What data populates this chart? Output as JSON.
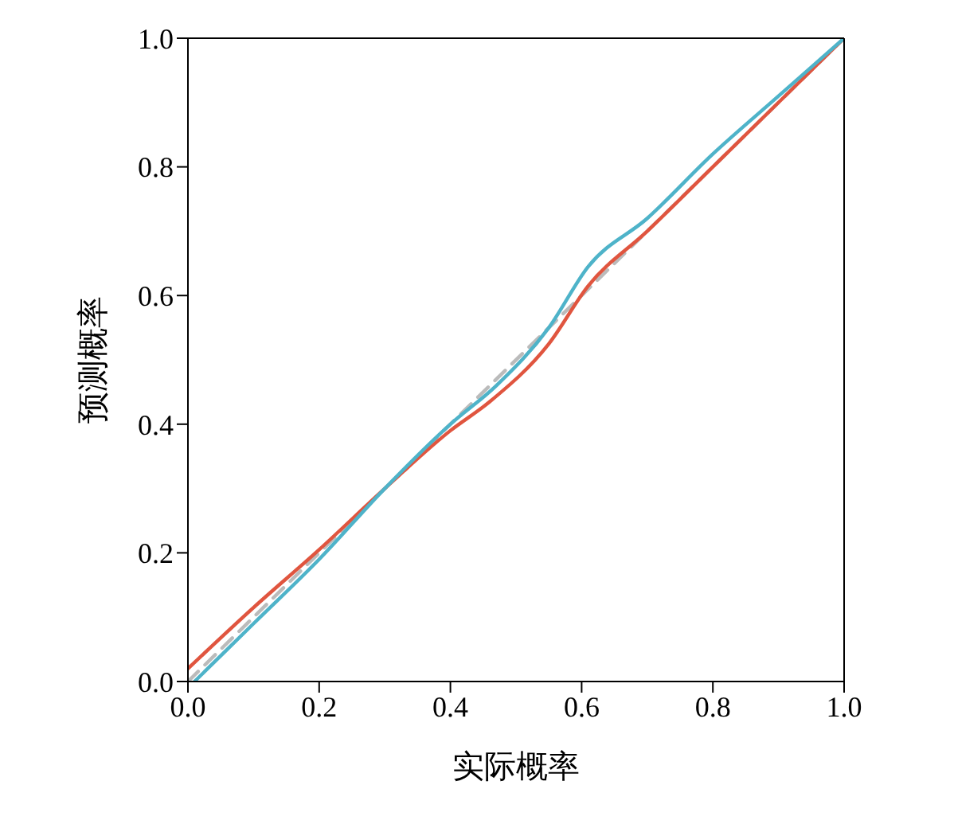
{
  "chart_data": {
    "type": "line",
    "xlabel": "实际概率",
    "ylabel": "预测概率",
    "xlim": [
      0,
      1
    ],
    "ylim": [
      0,
      1
    ],
    "xticks": [
      {
        "value": 0,
        "label": "0.0"
      },
      0.2,
      0.4,
      0.6,
      0.8,
      {
        "value": 1,
        "label": "1.0"
      }
    ],
    "yticks": [
      {
        "value": 0,
        "label": "0.0"
      },
      0.2,
      0.4,
      0.6,
      0.8,
      {
        "value": 1,
        "label": "1.0"
      }
    ],
    "legend": false,
    "marker": "none",
    "series": [
      {
        "color": "#bbbbbb",
        "line_style": "dashed",
        "x": [
          0,
          1
        ],
        "values": [
          0,
          1
        ]
      },
      {
        "color": "#e0553f",
        "line_style": "solid",
        "x": [
          0,
          0.1,
          0.2,
          0.3,
          0.4,
          0.46,
          0.55,
          0.61,
          0.7,
          0.8,
          0.9,
          1
        ],
        "values": [
          0.02,
          0.115,
          0.205,
          0.3,
          0.39,
          0.435,
          0.525,
          0.615,
          0.7,
          0.8,
          0.9,
          1
        ]
      },
      {
        "color": "#4eb3c9",
        "line_style": "solid",
        "x": [
          0.01,
          0.1,
          0.2,
          0.3,
          0.4,
          0.47,
          0.55,
          0.61,
          0.7,
          0.8,
          0.9,
          1
        ],
        "values": [
          0,
          0.09,
          0.19,
          0.3,
          0.4,
          0.46,
          0.55,
          0.645,
          0.72,
          0.82,
          0.91,
          1
        ]
      }
    ]
  }
}
